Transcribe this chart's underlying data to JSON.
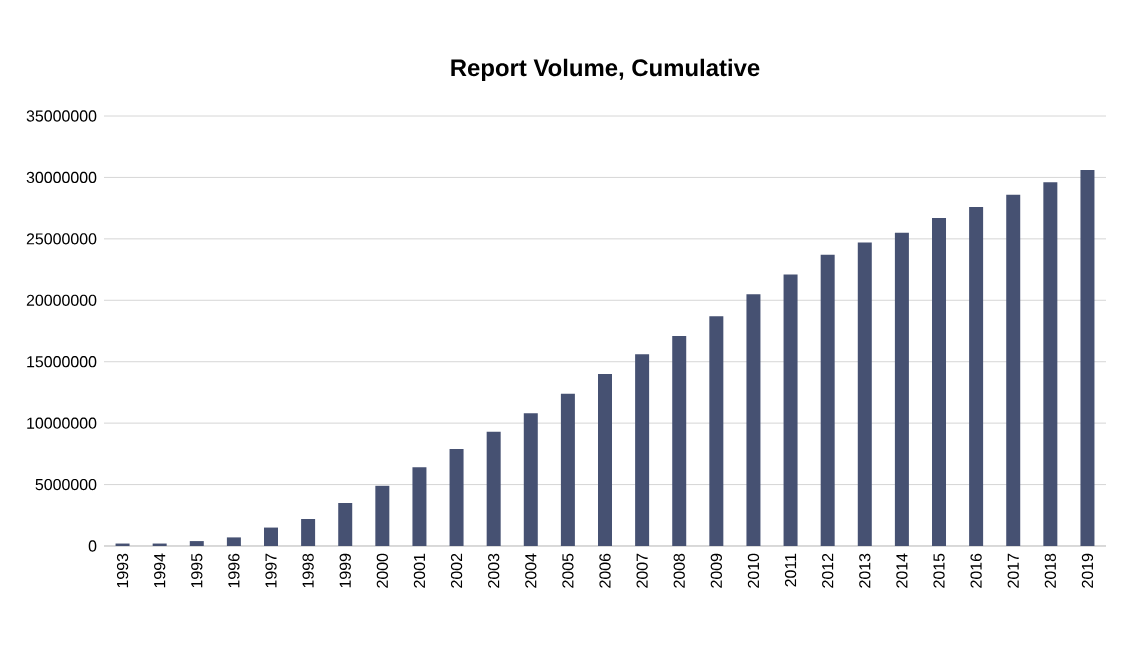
{
  "chart_data": {
    "type": "bar",
    "title": "Report Volume, Cumulative",
    "categories": [
      "1993",
      "1994",
      "1995",
      "1996",
      "1997",
      "1998",
      "1999",
      "2000",
      "2001",
      "2002",
      "2003",
      "2004",
      "2005",
      "2006",
      "2007",
      "2008",
      "2009",
      "2010",
      "2011",
      "2012",
      "2013",
      "2014",
      "2015",
      "2016",
      "2017",
      "2018",
      "2019"
    ],
    "values": [
      200000,
      200000,
      400000,
      700000,
      1500000,
      2200000,
      3500000,
      4900000,
      6400000,
      7900000,
      9300000,
      10800000,
      12400000,
      14000000,
      15600000,
      17100000,
      18700000,
      20500000,
      22100000,
      23700000,
      24700000,
      25500000,
      26700000,
      27600000,
      28600000,
      29600000,
      30600000
    ],
    "color": "#465172",
    "ylim": [
      0,
      35000000
    ],
    "yticks": [
      0,
      5000000,
      10000000,
      15000000,
      20000000,
      25000000,
      30000000,
      35000000
    ],
    "grid": "y",
    "legend": false
  }
}
